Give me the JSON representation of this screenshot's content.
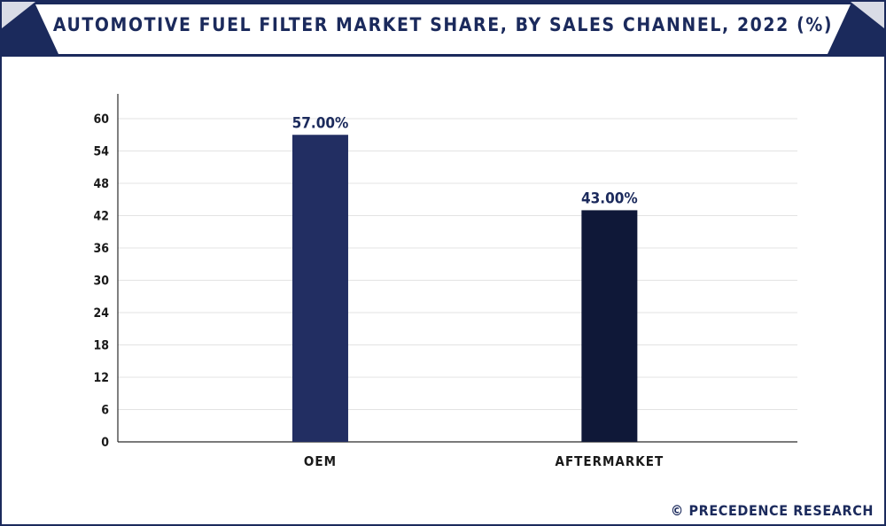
{
  "title": "AUTOMOTIVE FUEL FILTER MARKET SHARE, BY SALES CHANNEL, 2022 (%)",
  "footer": "© PRECEDENCE RESEARCH",
  "colors": {
    "frame": "#1b2a5c",
    "bar_oem": "#222e62",
    "bar_aftermarket": "#0f1838",
    "grid": "#e3e3e3"
  },
  "chart_data": {
    "type": "bar",
    "categories": [
      "OEM",
      "AFTERMARKET"
    ],
    "values": [
      57.0,
      43.0
    ],
    "data_labels": [
      "57.00%",
      "43.00%"
    ],
    "yticks": [
      0,
      6,
      12,
      18,
      24,
      30,
      36,
      42,
      48,
      54,
      60
    ],
    "ylim": [
      0,
      60
    ],
    "grid": true,
    "legend": "none",
    "xlabel": "",
    "ylabel": ""
  }
}
